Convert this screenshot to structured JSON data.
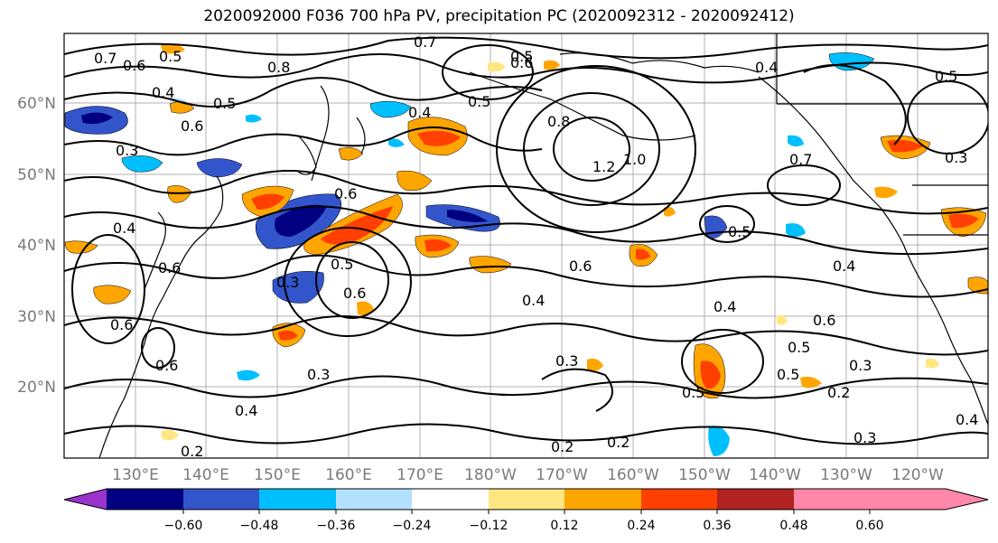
{
  "title": "2020092000 F036 700 hPa PV, precipitation PC (2020092312 - 2020092412)",
  "lat_labels": [
    "60°N",
    "50°N",
    "40°N",
    "30°N",
    "20°N"
  ],
  "lon_labels": [
    "130°E",
    "140°E",
    "150°E",
    "160°E",
    "170°E",
    "180°W",
    "170°W",
    "160°W",
    "150°W",
    "140°W",
    "130°W",
    "120°W"
  ],
  "colorbar": {
    "ticks": [
      "−0.60",
      "−0.48",
      "−0.36",
      "−0.24",
      "−0.12",
      "0.12",
      "0.24",
      "0.36",
      "0.48",
      "0.60"
    ],
    "colors": [
      "#9933cc",
      "#000080",
      "#3355cc",
      "#00bfff",
      "#b3e0ff",
      "#ffffff",
      "#ffe680",
      "#ffa500",
      "#ff4000",
      "#b22222",
      "#ff88aa"
    ]
  },
  "contour_labels": [
    "0.7",
    "0.6",
    "0.5",
    "0.4",
    "0.5",
    "0.8",
    "0.6",
    "0.7",
    "0.6",
    "0.5",
    "0.4",
    "0.5",
    "0.3",
    "0.4",
    "0.6",
    "0.5",
    "0.6",
    "0.5",
    "0.6",
    "0.8",
    "1.2",
    "1.0",
    "0.7",
    "0.4",
    "0.5",
    "0.4",
    "0.4",
    "0.6",
    "0.5",
    "0.6",
    "0.3",
    "0.6",
    "0.6",
    "0.4",
    "0.3",
    "0.5",
    "0.3",
    "0.4",
    "0.2",
    "0.2",
    "0.2",
    "0.3",
    "0.5",
    "0.3",
    "0.2",
    "0.3",
    "0.4"
  ],
  "chart_data": {
    "type": "map",
    "description_fields": "filled precipitation principal component with PV contours",
    "lat_range": [
      10,
      70
    ],
    "lon_range": [
      120,
      250
    ],
    "contour_levels": [
      0.2,
      0.3,
      0.4,
      0.5,
      0.6,
      0.7,
      0.8,
      1.0,
      1.2
    ],
    "fill_levels": [
      -0.6,
      -0.48,
      -0.36,
      -0.24,
      -0.12,
      0.12,
      0.24,
      0.36,
      0.48,
      0.6
    ]
  }
}
